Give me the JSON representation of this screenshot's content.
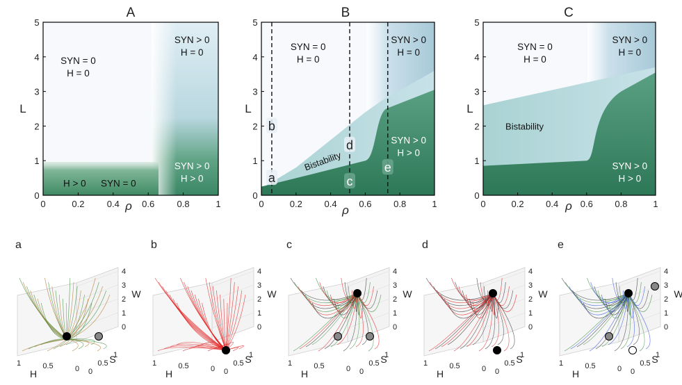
{
  "colors": {
    "white_region": "#f6f9fc",
    "light_blue": "#d8e9f2",
    "mid_teal": "#9cc6c6",
    "green": "#3e8a6a",
    "dark_green": "#2f7a5c",
    "traj_green": "#3d8f3d",
    "traj_red": "#e02020",
    "traj_black": "#333333",
    "traj_blue": "#3050e0",
    "traj_olive": "#b07a30"
  },
  "chart_data": [
    {
      "type": "heatmap",
      "panel": "A",
      "title": "A",
      "xlabel": "ρ",
      "ylabel": "L",
      "xlim": [
        0,
        1
      ],
      "ylim": [
        0,
        5
      ],
      "xticks": [
        "0",
        "0.2",
        "0.4",
        "0.6",
        "0.8",
        "1"
      ],
      "yticks": [
        "0",
        "1",
        "2",
        "3",
        "4",
        "5"
      ],
      "regions": [
        {
          "id": "a-none",
          "label": "SYN = 0\nH = 0",
          "at": [
            0.2,
            3.8
          ]
        },
        {
          "id": "a-syn",
          "label": "SYN > 0\nH = 0",
          "at": [
            0.85,
            4.4
          ]
        },
        {
          "id": "a-both",
          "label": "SYN > 0\nH > 0",
          "at": [
            0.85,
            0.75
          ]
        },
        {
          "id": "a-h",
          "label": "H > 0",
          "at": [
            0.18,
            0.25
          ]
        },
        {
          "id": "a-syn0",
          "label": "SYN = 0",
          "at": [
            0.43,
            0.25
          ]
        }
      ],
      "boundaries": {
        "rho_threshold": 0.62,
        "L_threshold": 0.85
      }
    },
    {
      "type": "heatmap",
      "panel": "B",
      "title": "B",
      "xlabel": "ρ",
      "ylabel": "L",
      "xlim": [
        0,
        1
      ],
      "ylim": [
        0,
        5
      ],
      "xticks": [
        "0",
        "0.2",
        "0.4",
        "0.6",
        "0.8",
        "1"
      ],
      "yticks": [
        "0",
        "1",
        "2",
        "3",
        "4",
        "5"
      ],
      "regions": [
        {
          "id": "b-none",
          "label": "SYN = 0\nH = 0",
          "at": [
            0.27,
            4.2
          ]
        },
        {
          "id": "b-syn",
          "label": "SYN > 0\nH = 0",
          "at": [
            0.85,
            4.4
          ]
        },
        {
          "id": "b-both",
          "label": "SYN > 0\nH > 0",
          "at": [
            0.85,
            1.5
          ]
        },
        {
          "id": "b-bist",
          "label": "Bistability",
          "at": [
            0.36,
            0.9
          ]
        }
      ],
      "bistability_upper": {
        "rho": [
          0.0,
          0.2,
          0.4,
          0.6,
          0.7,
          1.0
        ],
        "L": [
          0.2,
          0.8,
          1.6,
          2.4,
          2.75,
          3.6
        ]
      },
      "bistability_lower": {
        "rho": [
          0.0,
          0.3,
          0.6,
          0.66,
          0.72,
          1.0
        ],
        "L": [
          0.2,
          0.6,
          1.0,
          1.5,
          2.4,
          3.0
        ]
      },
      "dashed_lines": [
        {
          "id": "line-1",
          "rho": 0.06
        },
        {
          "id": "line-2",
          "rho": 0.51
        },
        {
          "id": "line-3",
          "rho": 0.73
        }
      ],
      "points": [
        {
          "id": "pt-a",
          "label": "a",
          "rho": 0.06,
          "L": 0.5
        },
        {
          "id": "pt-b",
          "label": "b",
          "rho": 0.06,
          "L": 2.0
        },
        {
          "id": "pt-c",
          "label": "c",
          "rho": 0.51,
          "L": 0.4
        },
        {
          "id": "pt-d",
          "label": "d",
          "rho": 0.51,
          "L": 1.45
        },
        {
          "id": "pt-e",
          "label": "e",
          "rho": 0.73,
          "L": 0.8
        }
      ]
    },
    {
      "type": "heatmap",
      "panel": "C",
      "title": "C",
      "xlabel": "ρ",
      "ylabel": "L",
      "xlim": [
        0,
        1
      ],
      "ylim": [
        0,
        5
      ],
      "xticks": [
        "0",
        "0.2",
        "0.4",
        "0.6",
        "0.8",
        "1"
      ],
      "yticks": [
        "0",
        "1",
        "2",
        "3",
        "4",
        "5"
      ],
      "regions": [
        {
          "id": "c-none",
          "label": "SYN = 0\nH = 0",
          "at": [
            0.3,
            4.2
          ]
        },
        {
          "id": "c-syn",
          "label": "SYN > 0\nH = 0",
          "at": [
            0.85,
            4.4
          ]
        },
        {
          "id": "c-both",
          "label": "SYN > 0\nH > 0",
          "at": [
            0.85,
            0.75
          ]
        },
        {
          "id": "c-bist",
          "label": "Bistability",
          "at": [
            0.24,
            1.9
          ]
        }
      ],
      "bistability_upper": {
        "rho": [
          0.0,
          1.0
        ],
        "L": [
          2.6,
          3.7
        ]
      },
      "bistability_lower": {
        "rho": [
          0.0,
          0.6,
          0.62,
          0.7,
          0.8,
          1.0
        ],
        "L": [
          0.85,
          1.0,
          1.15,
          2.2,
          2.9,
          3.5
        ]
      }
    }
  ],
  "phase_portraits": [
    {
      "id": "a",
      "label": "a",
      "axes": {
        "x": "H",
        "y": "S",
        "z": "W"
      },
      "colors": [
        "traj_green",
        "traj_olive"
      ],
      "fixed_points": [
        {
          "type": "stable",
          "pos": "H-side"
        },
        {
          "type": "saddle",
          "pos": "origin-up"
        }
      ]
    },
    {
      "id": "b",
      "label": "b",
      "axes": {
        "x": "H",
        "y": "S",
        "z": "W"
      },
      "colors": [
        "traj_red"
      ],
      "fixed_points": [
        {
          "type": "stable",
          "pos": "origin"
        }
      ]
    },
    {
      "id": "c",
      "label": "c",
      "axes": {
        "x": "H",
        "y": "S",
        "z": "W"
      },
      "colors": [
        "traj_black",
        "traj_green",
        "traj_red"
      ],
      "fixed_points": [
        {
          "type": "stable",
          "pos": "W-top"
        },
        {
          "type": "saddle",
          "pos": "H-side"
        },
        {
          "type": "saddle",
          "pos": "origin-up"
        }
      ]
    },
    {
      "id": "d",
      "label": "d",
      "axes": {
        "x": "H",
        "y": "S",
        "z": "W"
      },
      "colors": [
        "traj_black",
        "traj_red"
      ],
      "fixed_points": [
        {
          "type": "stable",
          "pos": "W-top"
        },
        {
          "type": "stable",
          "pos": "origin"
        }
      ]
    },
    {
      "id": "e",
      "label": "e",
      "axes": {
        "x": "H",
        "y": "S",
        "z": "W"
      },
      "colors": [
        "traj_black",
        "traj_green",
        "traj_blue"
      ],
      "fixed_points": [
        {
          "type": "stable",
          "pos": "W-top"
        },
        {
          "type": "saddle",
          "pos": "W-right"
        },
        {
          "type": "saddle",
          "pos": "H-side"
        },
        {
          "type": "unstable",
          "pos": "origin"
        }
      ]
    }
  ],
  "axis_ticks_3d": {
    "W": [
      "0",
      "1",
      "2",
      "3",
      "4"
    ],
    "S": [
      "0",
      "0.5",
      "1"
    ],
    "H": [
      "1",
      "0.5",
      "0"
    ]
  }
}
